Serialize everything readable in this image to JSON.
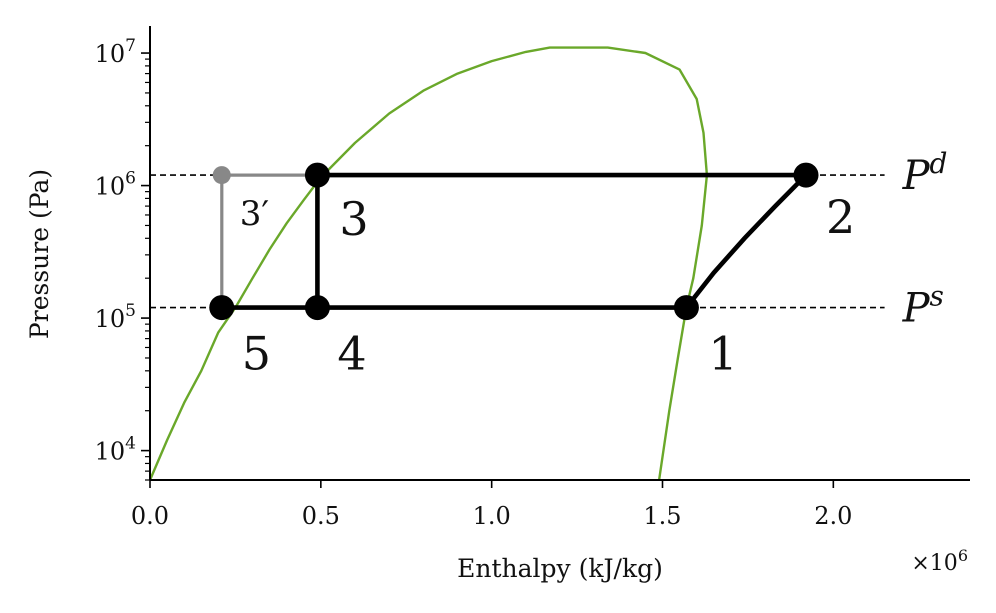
{
  "chart_data": {
    "type": "line",
    "title": "",
    "xlabel": "Enthalpy (kJ/kg)",
    "ylabel": "Pressure (Pa)",
    "x_multiplier_label": "×10",
    "x_multiplier_exponent": "6",
    "x_scale_factor": 1000000,
    "xlim": [
      0,
      2400000
    ],
    "ylim": [
      6000,
      16000000
    ],
    "yscale": "log",
    "grid": false,
    "x_ticks": [
      {
        "value": 0,
        "label": "0.0"
      },
      {
        "value": 500000,
        "label": "0.5"
      },
      {
        "value": 1000000,
        "label": "1.0"
      },
      {
        "value": 1500000,
        "label": "1.5"
      },
      {
        "value": 2000000,
        "label": "2.0"
      }
    ],
    "y_ticks": [
      {
        "value": 10000,
        "base": "10",
        "exp": "4"
      },
      {
        "value": 100000,
        "base": "10",
        "exp": "5"
      },
      {
        "value": 1000000,
        "base": "10",
        "exp": "6"
      },
      {
        "value": 10000000,
        "base": "10",
        "exp": "7"
      }
    ],
    "pressure_levels": [
      {
        "symbol": "P",
        "superscript": "d",
        "value": 1200000,
        "x_range": [
          0,
          2150000
        ]
      },
      {
        "symbol": "P",
        "superscript": "s",
        "value": 120000,
        "x_range": [
          0,
          2150000
        ]
      }
    ],
    "saturation_dome": {
      "color": "#6aa82a",
      "points": [
        [
          0,
          6000
        ],
        [
          50000,
          12000
        ],
        [
          100000,
          23000
        ],
        [
          150000,
          40000
        ],
        [
          200000,
          78000
        ],
        [
          250000,
          120000
        ],
        [
          300000,
          200000
        ],
        [
          350000,
          330000
        ],
        [
          400000,
          520000
        ],
        [
          450000,
          780000
        ],
        [
          500000,
          1150000
        ],
        [
          600000,
          2100000
        ],
        [
          700000,
          3500000
        ],
        [
          800000,
          5200000
        ],
        [
          900000,
          7000000
        ],
        [
          1000000,
          8700000
        ],
        [
          1100000,
          10200000
        ],
        [
          1170000,
          11000000
        ],
        [
          1250000,
          11000000
        ],
        [
          1340000,
          11000000
        ],
        [
          1450000,
          10000000
        ],
        [
          1550000,
          7500000
        ],
        [
          1600000,
          4500000
        ],
        [
          1620000,
          2500000
        ],
        [
          1630000,
          1200000
        ],
        [
          1615000,
          500000
        ],
        [
          1590000,
          200000
        ],
        [
          1570000,
          120000
        ],
        [
          1545000,
          50000
        ],
        [
          1520000,
          20000
        ],
        [
          1490000,
          6000
        ]
      ]
    },
    "cycle": {
      "color": "#000000",
      "segments": [
        {
          "from": "5",
          "to": "1"
        },
        {
          "from": "4",
          "to": "3"
        },
        {
          "from": "3",
          "to": "2"
        }
      ],
      "compression_curve": [
        [
          1570000,
          120000
        ],
        [
          1650000,
          220000
        ],
        [
          1740000,
          400000
        ],
        [
          1830000,
          700000
        ],
        [
          1920000,
          1200000
        ]
      ]
    },
    "alternate_path": {
      "color": "#888888",
      "points": [
        [
          210000,
          120000
        ],
        [
          210000,
          1200000
        ],
        [
          490000,
          1200000
        ]
      ]
    },
    "points": [
      {
        "id": "1",
        "label": "1",
        "x": 1570000,
        "y": 120000,
        "color": "#000000"
      },
      {
        "id": "2",
        "label": "2",
        "x": 1920000,
        "y": 1200000,
        "color": "#000000"
      },
      {
        "id": "3",
        "label": "3",
        "x": 490000,
        "y": 1200000,
        "color": "#000000"
      },
      {
        "id": "3p",
        "label": "3′",
        "x": 210000,
        "y": 1200000,
        "color": "#888888"
      },
      {
        "id": "4",
        "label": "4",
        "x": 490000,
        "y": 120000,
        "color": "#000000"
      },
      {
        "id": "5",
        "label": "5",
        "x": 210000,
        "y": 120000,
        "color": "#000000"
      }
    ]
  }
}
